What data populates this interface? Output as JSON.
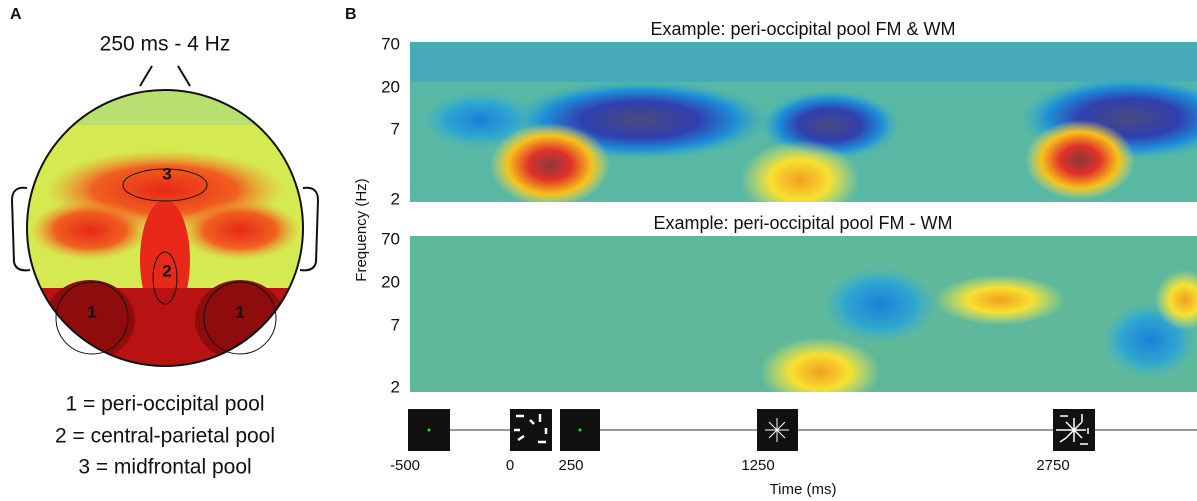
{
  "panel_a": {
    "label": "A",
    "title": "250 ms - 4 Hz",
    "pool_marks": [
      "1",
      "1",
      "2",
      "3"
    ],
    "legend": [
      "1 = peri-occipital pool",
      "2 = central-parietal pool",
      "3 = midfrontal pool"
    ]
  },
  "panel_b": {
    "label": "B",
    "y_axis_label": "Frequency (Hz)",
    "x_axis_label": "Time (ms)",
    "maps": [
      {
        "title": "Example: peri-occipital pool FM & WM",
        "y_tick_labels": [
          "70",
          "20",
          "7",
          "2"
        ]
      },
      {
        "title": "Example: peri-occipital pool FM - WM",
        "y_tick_labels": [
          "70",
          "20",
          "7",
          "2"
        ]
      }
    ],
    "time_labels": [
      "-500",
      "0",
      "250",
      "1250",
      "2750"
    ]
  }
}
